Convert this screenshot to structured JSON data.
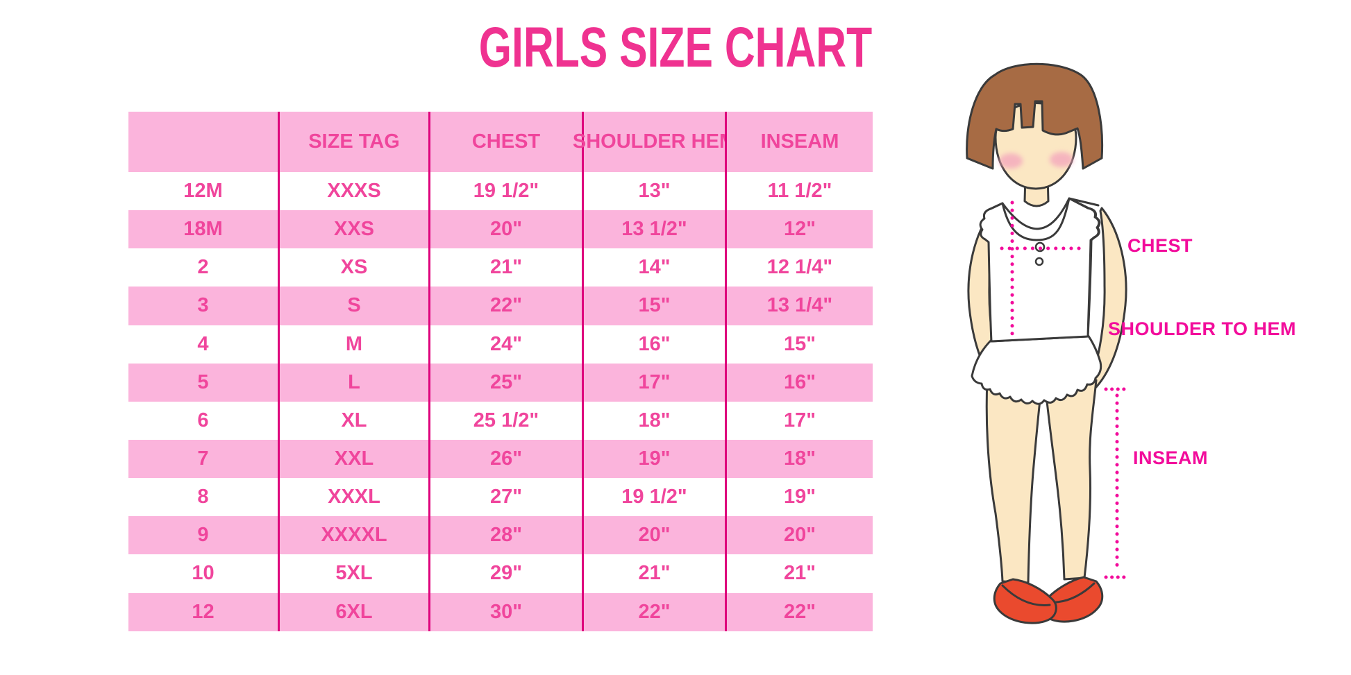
{
  "title": "GIRLS SIZE CHART",
  "chart_data": {
    "type": "table",
    "title": "GIRLS SIZE CHART",
    "columns": [
      "",
      "SIZE TAG",
      "CHEST",
      "SHOULDER HEM",
      "INSEAM"
    ],
    "rows": [
      [
        "12M",
        "XXXS",
        "19 1/2\"",
        "13\"",
        "11 1/2\""
      ],
      [
        "18M",
        "XXS",
        "20\"",
        "13 1/2\"",
        "12\""
      ],
      [
        "2",
        "XS",
        "21\"",
        "14\"",
        "12 1/4\""
      ],
      [
        "3",
        "S",
        "22\"",
        "15\"",
        "13 1/4\""
      ],
      [
        "4",
        "M",
        "24\"",
        "16\"",
        "15\""
      ],
      [
        "5",
        "L",
        "25\"",
        "17\"",
        "16\""
      ],
      [
        "6",
        "XL",
        "25 1/2\"",
        "18\"",
        "17\""
      ],
      [
        "7",
        "XXL",
        "26\"",
        "19\"",
        "18\""
      ],
      [
        "8",
        "XXXL",
        "27\"",
        "19 1/2\"",
        "19\""
      ],
      [
        "9",
        "XXXXL",
        "28\"",
        "20\"",
        "20\""
      ],
      [
        "10",
        "5XL",
        "29\"",
        "21\"",
        "21\""
      ],
      [
        "12",
        "6XL",
        "30\"",
        "22\"",
        "22\""
      ]
    ],
    "layout": {
      "striped": true,
      "first_data_row": "white",
      "header_background": "pink",
      "column_dividers": true,
      "legend_position": "none",
      "grid": false
    }
  },
  "diagram": {
    "chest_label": "CHEST",
    "shoulder_to_hem_label": "SHOULDER TO HEM",
    "inseam_label": "INSEAM"
  },
  "colors": {
    "title-pink": "#EF3290",
    "row-pink": "#FBB4DC",
    "table-text": "#F0459C",
    "divider": "#DE047C",
    "magenta": "#F20C9B",
    "hair": "#A76B44",
    "skin": "#FBE7C3",
    "blush": "#F4A8BD",
    "shoe-red": "#EA4A2E",
    "outline": "#3A3A3A"
  }
}
